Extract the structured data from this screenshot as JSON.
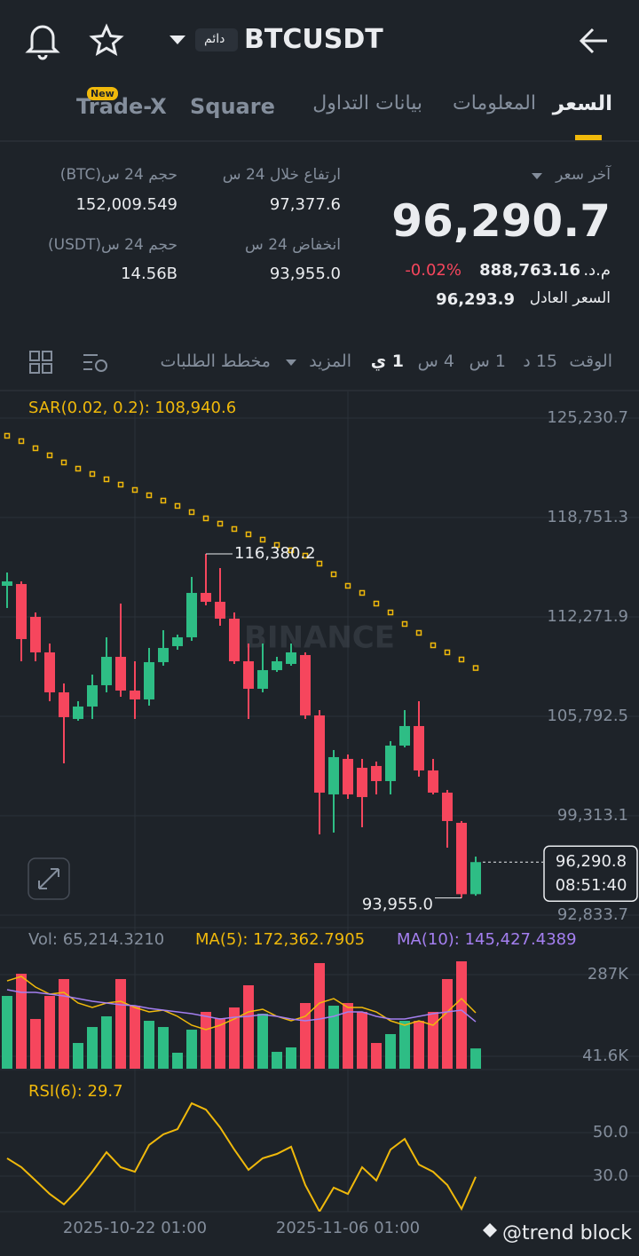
{
  "header": {
    "symbol": "BTCUSDT",
    "badge": "دائم"
  },
  "tabs": [
    "السعر",
    "المعلومات",
    "بيانات التداول",
    "Square",
    "Trade-X"
  ],
  "tab_badge": "New",
  "ticker": {
    "last_price_label": "آخر سعر",
    "last_price": "96,290.7",
    "change": "-0.02%",
    "local_price": "888,763.16",
    "local_currency": "م.د.",
    "fair_price_label": "السعر العادل",
    "fair_price": "96,293.9"
  },
  "stats": [
    {
      "label": "ارتفاع خلال 24 س",
      "value": "97,377.6"
    },
    {
      "label": "انخفاض 24 س",
      "value": "93,955.0"
    },
    {
      "label": "حجم 24 س(BTC)",
      "value": "152,009.549"
    },
    {
      "label": "حجم 24 س(USDT)",
      "value": "14.56B"
    }
  ],
  "toolbar": [
    "الوقت",
    "15 د",
    "1 س",
    "4 س",
    "1 ي",
    "المزيد",
    "مخطط الطلبات"
  ],
  "footer": "@trend block",
  "chart_data": [
    {
      "type": "candlestick",
      "indicator_label": "SAR(0.02, 0.2): 108,940.6",
      "watermark": "BINANCE",
      "categories": [
        null,
        null,
        null,
        null,
        null,
        null,
        null,
        null,
        null,
        "2025-10-22 01:00",
        null,
        null,
        null,
        null,
        null,
        null,
        null,
        null,
        null,
        null,
        null,
        null,
        null,
        null,
        "2025-11-06 01:00",
        null,
        null,
        null,
        null,
        null,
        null,
        null,
        null,
        null
      ],
      "open": [
        114297,
        114413,
        112273,
        109959,
        107355,
        105620,
        106430,
        107818,
        109669,
        107471,
        106893,
        109322,
        110364,
        110942,
        113835,
        113256,
        112157,
        109380,
        107587,
        108802,
        109207,
        109785,
        105851,
        100703,
        103017,
        102438,
        102554,
        101570,
        103884,
        105157,
        102265,
        100818,
        98851,
        94200
      ],
      "high": [
        115165,
        114587,
        112562,
        110537,
        107934,
        106777,
        108512,
        110942,
        113140,
        109380,
        110248,
        111405,
        111116,
        114876,
        116380.2,
        115454,
        112562,
        110537,
        110537,
        109669,
        110537,
        109959,
        106198,
        103595,
        103306,
        103017,
        102843,
        104174,
        106198,
        106777,
        103017,
        100992,
        98967,
        96650
      ],
      "low": [
        112851,
        109380,
        109380,
        106777,
        102727,
        105504,
        105620,
        107355,
        107066,
        105620,
        106488,
        109091,
        110132,
        110711,
        113025,
        111694,
        109207,
        105620,
        107355,
        108686,
        109091,
        105620,
        98099,
        98215,
        100413,
        98562,
        100703,
        100703,
        103769,
        101860,
        100703,
        97232,
        93955,
        94100
      ],
      "close": [
        114587,
        110826,
        109959,
        107355,
        105736,
        106430,
        107818,
        109669,
        107471,
        106893,
        109322,
        110248,
        110942,
        113835,
        113256,
        112157,
        109380,
        107587,
        108802,
        109380,
        109959,
        105851,
        100818,
        103132,
        100703,
        100529,
        101570,
        103884,
        105157,
        102265,
        100818,
        98967,
        94200,
        96290.8
      ],
      "up_color": "#2ebd85",
      "down_color": "#f6465d",
      "sar": {
        "color": "#f0b90b",
        "values": [
          124074,
          123727,
          123264,
          122801,
          122338,
          121933,
          121586,
          121239,
          120892,
          120545,
          120198,
          119851,
          119504,
          119099,
          118694,
          118347,
          118000,
          117653,
          117306,
          116958,
          116611,
          116264,
          115744,
          115049,
          114297,
          113835,
          113140,
          112562,
          111810,
          111231,
          110421,
          109959,
          109496,
          108940.6
        ]
      },
      "high_label": "116,380.2",
      "low_label": "93,955.0",
      "last_price_label": "96,290.8",
      "countdown": "08:51:40",
      "ylim": [
        92000,
        127000
      ],
      "yticks": [
        {
          "value": 125230.7,
          "label": "125,230.7"
        },
        {
          "value": 118751.3,
          "label": "118,751.3"
        },
        {
          "value": 112271.9,
          "label": "112,271.9"
        },
        {
          "value": 105792.5,
          "label": "105,792.5"
        },
        {
          "value": 99313.1,
          "label": "99,313.1"
        },
        {
          "value": 92833.7,
          "label": "92,833.7"
        }
      ],
      "grid": true
    },
    {
      "type": "bar",
      "label": "Vol: 65,214.3210",
      "values": [
        223000,
        289700,
        153700,
        223000,
        273700,
        81600,
        129600,
        161700,
        273700,
        193700,
        148300,
        129600,
        52300,
        121600,
        175000,
        156300,
        188300,
        255000,
        169700,
        55000,
        68300,
        201700,
        321700,
        193700,
        201700,
        175000,
        81600,
        108300,
        148300,
        148300,
        175000,
        273700,
        327000,
        65214.321
      ],
      "series": [
        {
          "name": "MA(5): 172,362.7905",
          "color": "#f0b90b",
          "values": [
            268300,
            281700,
            249700,
            228300,
            233700,
            201700,
            188300,
            201700,
            207000,
            188300,
            175000,
            180300,
            161700,
            135000,
            121600,
            135000,
            153700,
            175000,
            183000,
            161700,
            148300,
            161700,
            201700,
            215000,
            188300,
            188300,
            175000,
            148300,
            135000,
            148300,
            135000,
            175000,
            215000,
            172362.7905
          ]
        },
        {
          "name": "MA(10): 145,427.4389",
          "color": "#a47ff0",
          "values": [
            241700,
            233700,
            233700,
            228300,
            223000,
            215000,
            207000,
            201700,
            196300,
            193700,
            185700,
            180300,
            175000,
            169700,
            161700,
            153700,
            159000,
            161700,
            167000,
            161700,
            153700,
            148300,
            153700,
            161700,
            175000,
            175000,
            161700,
            153700,
            153700,
            161700,
            169700,
            175000,
            180300,
            145427.4389
          ]
        }
      ],
      "ylim": [
        0,
        330000
      ],
      "yticks": [
        {
          "value": 287000,
          "label": "287K"
        },
        {
          "value": 41600,
          "label": "41.6K"
        }
      ]
    },
    {
      "type": "line",
      "label": "RSI(6): 29.7",
      "color": "#f0b90b",
      "values": [
        38.2,
        34.1,
        28.0,
        21.8,
        17.0,
        23.9,
        32.0,
        41.0,
        34.1,
        32.0,
        44.3,
        49.2,
        51.6,
        63.5,
        60.6,
        52.4,
        42.2,
        32.9,
        38.2,
        40.2,
        43.5,
        25.9,
        13.7,
        24.7,
        21.8,
        34.1,
        28.0,
        42.2,
        47.1,
        35.3,
        32.0,
        25.9,
        14.9,
        29.7
      ],
      "ylim": [
        10,
        80
      ],
      "yticks": [
        {
          "value": 50,
          "label": "50.0"
        },
        {
          "value": 30,
          "label": "30.0"
        }
      ]
    }
  ]
}
